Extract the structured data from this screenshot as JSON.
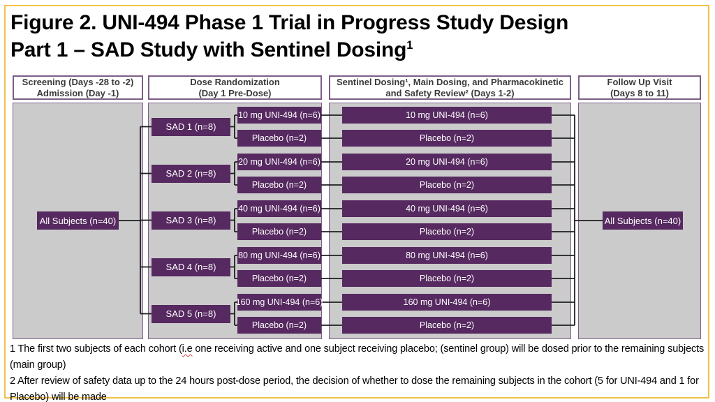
{
  "title": {
    "line1": "Figure 2. UNI-494 Phase 1 Trial in Progress Study Design",
    "line2": "Part 1 – SAD Study with Sentinel Dosing",
    "line2_superscript": "1"
  },
  "columns": [
    {
      "header_line1": "Screening (Days -28 to -2)",
      "header_line2": "Admission (Day -1)"
    },
    {
      "header_line1": "Dose Randomization",
      "header_line2": "(Day 1 Pre-Dose)"
    },
    {
      "header_line1": "Sentinel Dosing¹, Main Dosing, and Pharmacokinetic",
      "header_line2": "and Safety Review² (Days 1-2)"
    },
    {
      "header_line1": "Follow Up Visit",
      "header_line2": "(Days 8 to 11)"
    }
  ],
  "all_subjects_left": "All Subjects (n=40)",
  "all_subjects_right": "All Subjects (n=40)",
  "cohorts": [
    {
      "sad": "SAD 1 (n=8)",
      "active": "10 mg UNI-494 (n=6)",
      "placebo": "Placebo (n=2)"
    },
    {
      "sad": "SAD 2 (n=8)",
      "active": "20 mg UNI-494 (n=6)",
      "placebo": "Placebo (n=2)"
    },
    {
      "sad": "SAD 3 (n=8)",
      "active": "40 mg UNI-494 (n=6)",
      "placebo": "Placebo (n=2)"
    },
    {
      "sad": "SAD 4 (n=8)",
      "active": "80 mg UNI-494 (n=6)",
      "placebo": "Placebo (n=2)"
    },
    {
      "sad": "SAD 5 (n=8)",
      "active": "160 mg UNI-494 (n=6)",
      "placebo": "Placebo (n=2)"
    }
  ],
  "footnotes": {
    "note1_pre": "1 The first two subjects of each cohort (",
    "note1_flagged": "i.e",
    "note1_post": " one receiving active and one subject receiving placebo; (sentinel group) will be dosed prior to the remaining subjects (main group)",
    "note2": "2 After review of safety data up to the 24 hours post-dose period, the decision of whether to dose the remaining subjects in the cohort (5 for UNI-494 and 1 for Placebo) will be made"
  },
  "colors": {
    "box_purple": "#562960",
    "panel_border_purple": "#7d5e87",
    "panel_gray": "#cbcbcb",
    "frame_gold": "#f0c24a",
    "connector": "#1f1f1f"
  }
}
